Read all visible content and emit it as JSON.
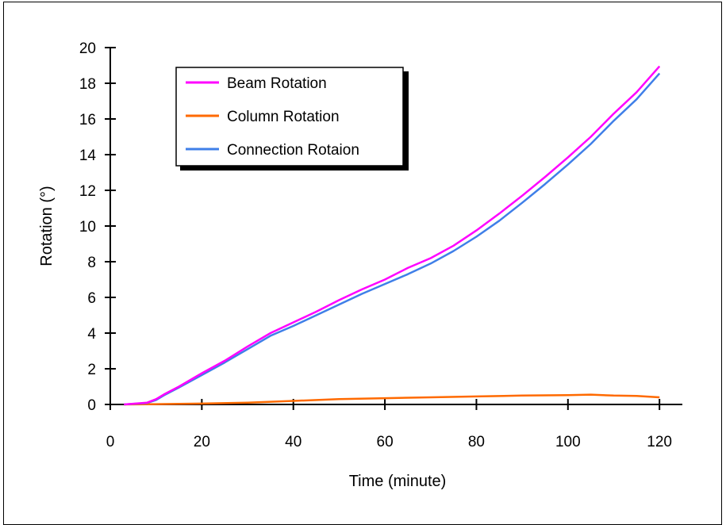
{
  "chart_data": {
    "type": "line",
    "title": "",
    "xlabel": "Time (minute)",
    "ylabel": "Rotation (°)",
    "xlim": [
      0,
      125
    ],
    "ylim": [
      0,
      20
    ],
    "xticks": [
      0,
      20,
      40,
      60,
      80,
      100,
      120
    ],
    "yticks": [
      0,
      2,
      4,
      6,
      8,
      10,
      12,
      14,
      16,
      18,
      20
    ],
    "grid": false,
    "legend_position": "top-left",
    "series": [
      {
        "name": "Beam Rotation",
        "color": "#ff00ff",
        "x": [
          3,
          8,
          10,
          12,
          15,
          20,
          25,
          30,
          35,
          40,
          45,
          50,
          55,
          60,
          65,
          70,
          75,
          80,
          85,
          90,
          95,
          100,
          105,
          110,
          115,
          120
        ],
        "y": [
          0,
          0.1,
          0.3,
          0.6,
          1.0,
          1.75,
          2.45,
          3.25,
          4.0,
          4.6,
          5.2,
          5.85,
          6.45,
          7.0,
          7.65,
          8.2,
          8.9,
          9.75,
          10.7,
          11.7,
          12.75,
          13.85,
          15.0,
          16.3,
          17.5,
          18.95
        ]
      },
      {
        "name": "Column Rotation",
        "color": "#ff6a00",
        "x": [
          3,
          10,
          20,
          30,
          40,
          50,
          60,
          70,
          80,
          90,
          100,
          105,
          110,
          115,
          120
        ],
        "y": [
          0,
          0.02,
          0.05,
          0.1,
          0.2,
          0.3,
          0.35,
          0.4,
          0.45,
          0.5,
          0.52,
          0.55,
          0.5,
          0.48,
          0.4
        ]
      },
      {
        "name": "Connection Rotaion",
        "color": "#3f7fe8",
        "x": [
          3,
          8,
          10,
          12,
          15,
          20,
          25,
          30,
          35,
          40,
          45,
          50,
          55,
          60,
          65,
          70,
          75,
          80,
          85,
          90,
          95,
          100,
          105,
          110,
          115,
          120
        ],
        "y": [
          0,
          0.08,
          0.25,
          0.55,
          0.95,
          1.65,
          2.35,
          3.1,
          3.85,
          4.4,
          5.0,
          5.6,
          6.2,
          6.75,
          7.3,
          7.9,
          8.6,
          9.4,
          10.3,
          11.3,
          12.35,
          13.45,
          14.6,
          15.9,
          17.1,
          18.55
        ]
      }
    ]
  }
}
